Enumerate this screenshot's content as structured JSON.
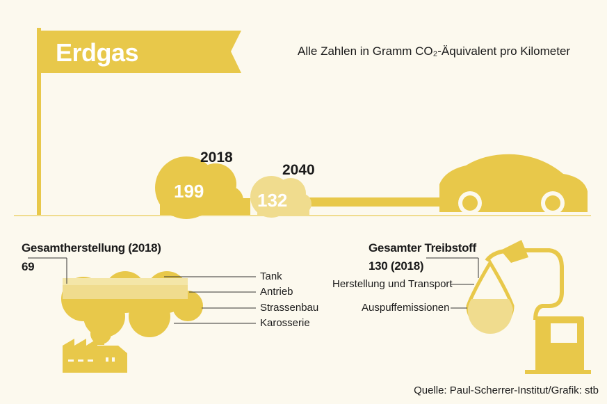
{
  "title": "Erdgas",
  "subtitle": "Alle Zahlen in Gramm CO₂-Äquivalent pro Kilometer",
  "colors": {
    "background": "#fcf9ee",
    "yellow": "#e8c84a",
    "light_yellow": "#f0dc8e",
    "pale_yellow": "#f4e6a8"
  },
  "emissions": [
    {
      "year": "2018",
      "value": "199"
    },
    {
      "year": "2040",
      "value": "132"
    }
  ],
  "production": {
    "heading": "Gesamtherstellung (2018)",
    "value": "69",
    "parts": [
      "Tank",
      "Antrieb",
      "Strassenbau",
      "Karosserie"
    ]
  },
  "fuel": {
    "heading": "Gesamter Treibstoff",
    "value": "130 (2018)",
    "parts": [
      "Herstellung und Transport",
      "Auspuffemissionen"
    ]
  },
  "source": "Quelle: Paul-Scherrer-Institut/Grafik: stb"
}
